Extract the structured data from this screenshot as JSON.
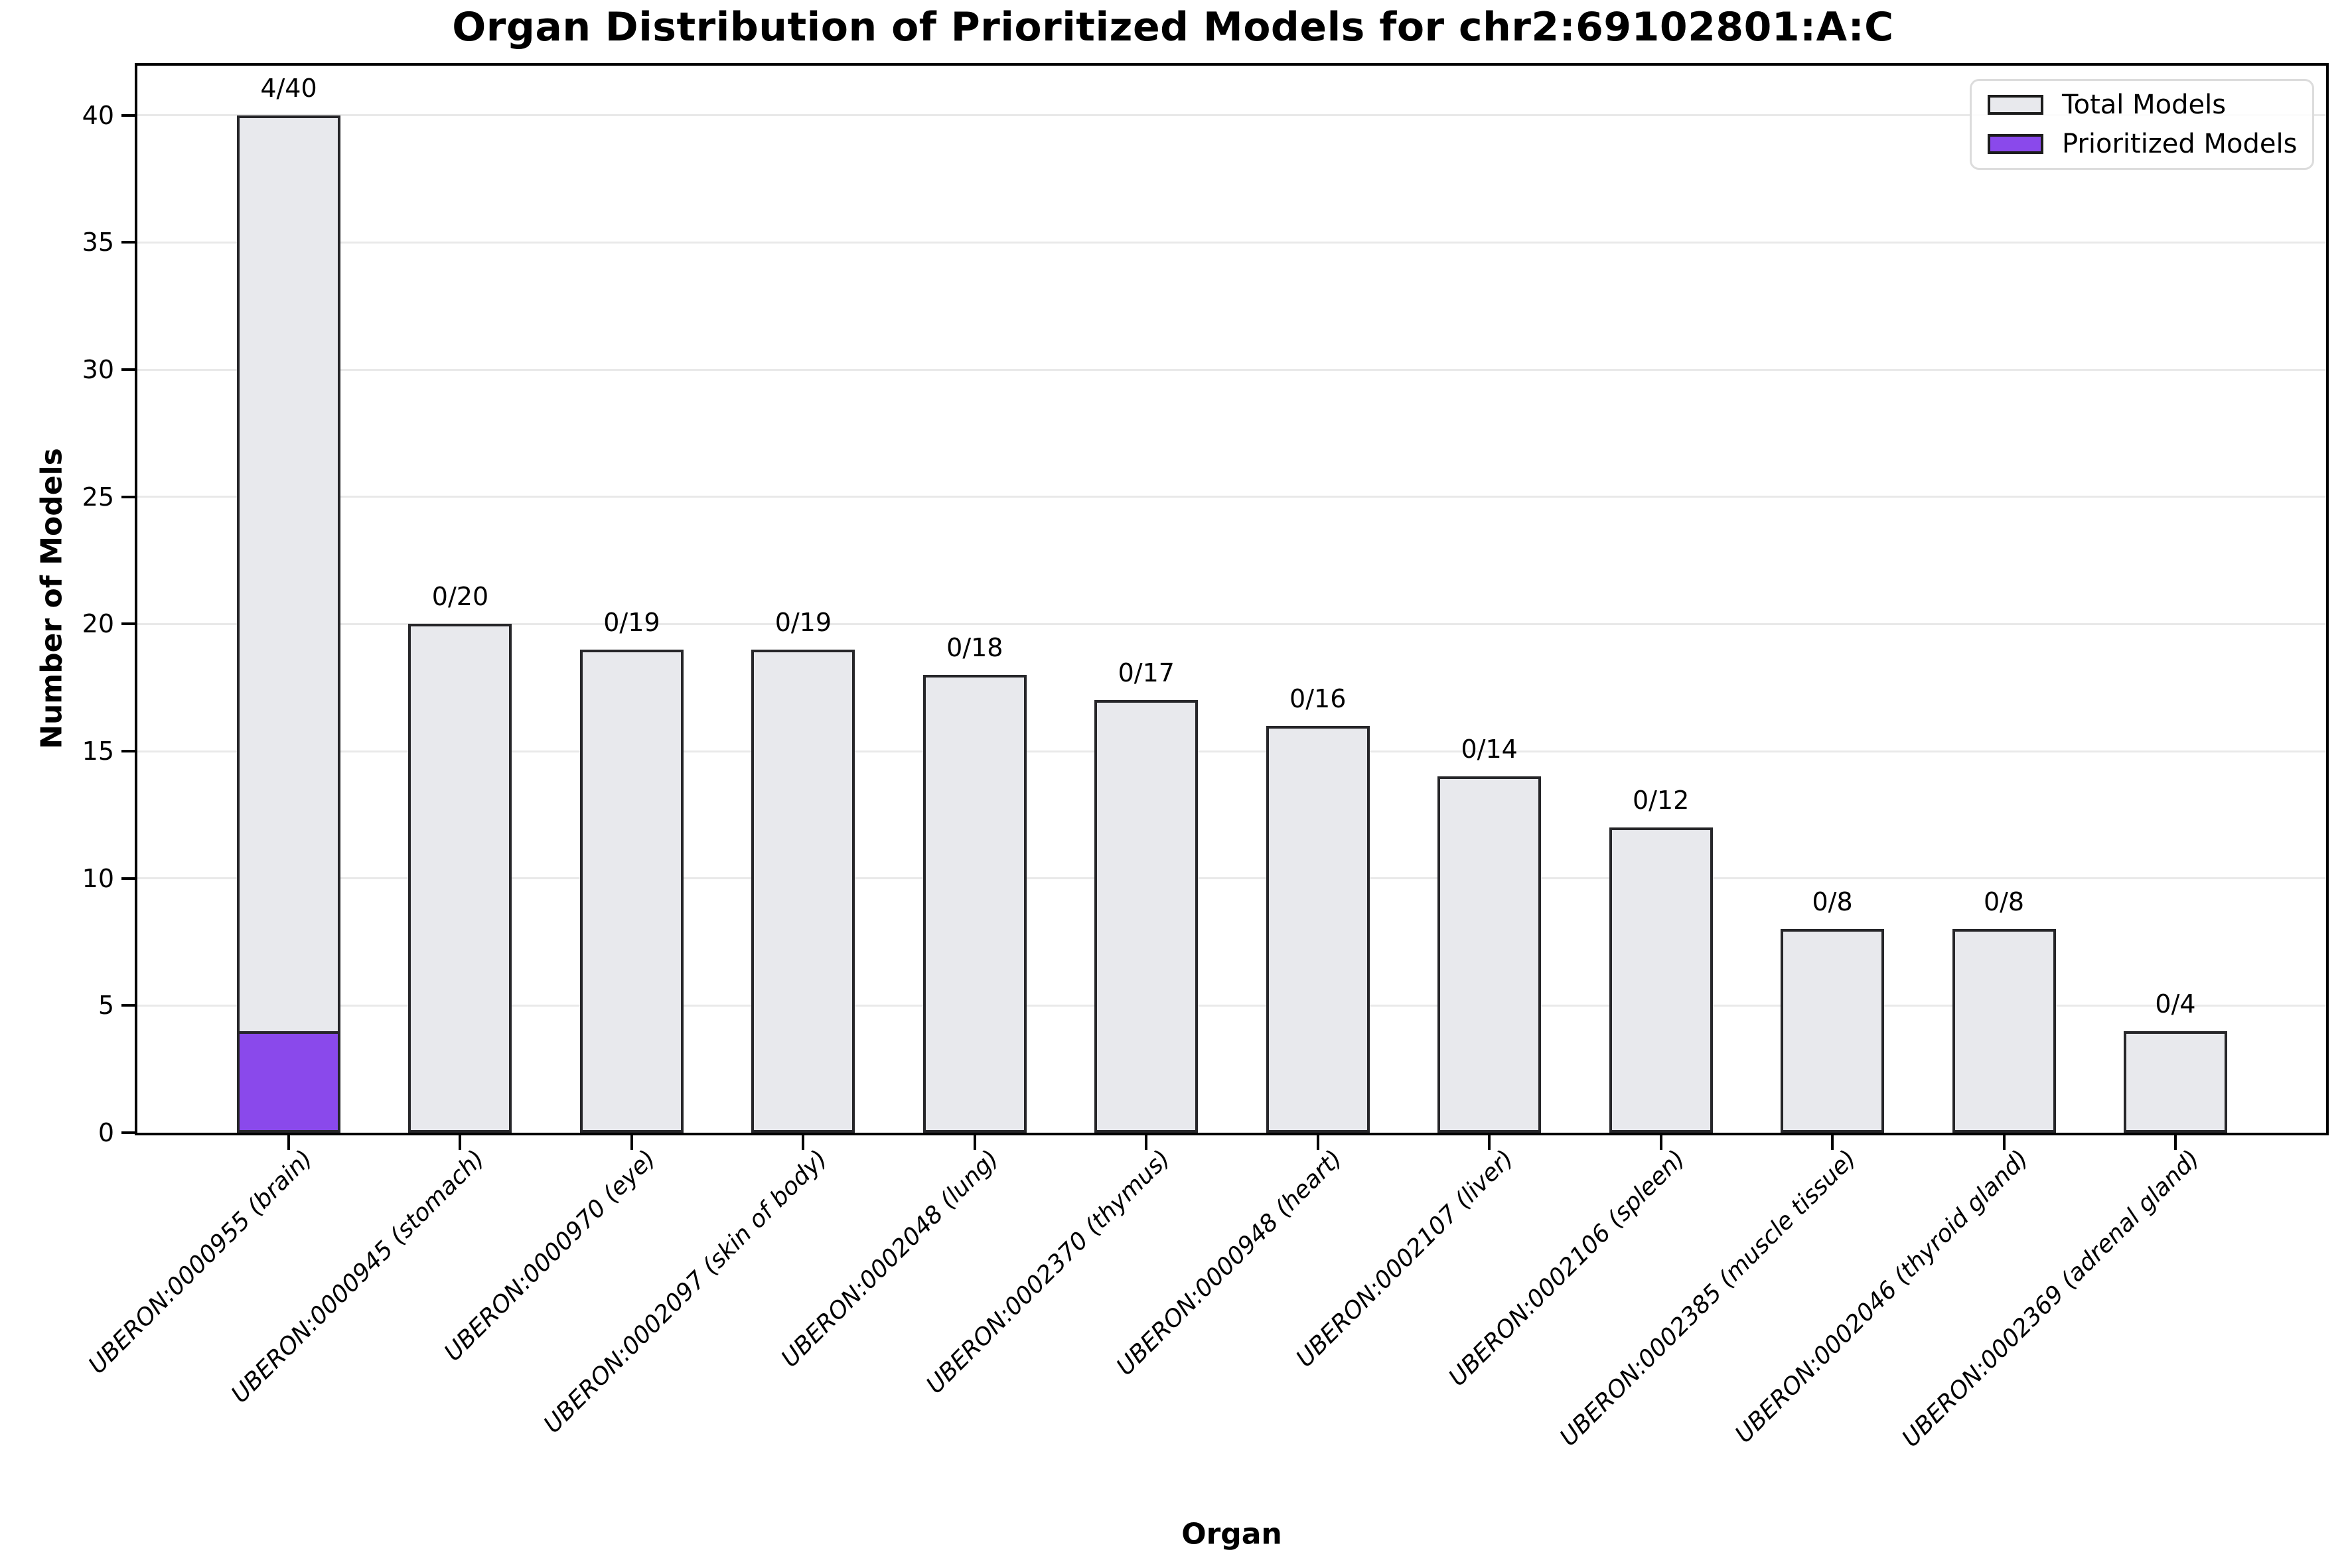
{
  "chart_data": {
    "type": "bar",
    "title": "Organ Distribution of Prioritized Models for chr2:69102801:A:C",
    "xlabel": "Organ",
    "ylabel": "Number of Models",
    "ylim": [
      0,
      42
    ],
    "yticks": [
      0,
      5,
      10,
      15,
      20,
      25,
      30,
      35,
      40
    ],
    "grid": "horizontal-light",
    "legend_position": "upper-right",
    "x_tick_style": "italic, rotated 45deg",
    "categories": [
      "UBERON:0000955 (brain)",
      "UBERON:0000945 (stomach)",
      "UBERON:0000970 (eye)",
      "UBERON:0002097 (skin of body)",
      "UBERON:0002048 (lung)",
      "UBERON:0002370 (thymus)",
      "UBERON:0000948 (heart)",
      "UBERON:0002107 (liver)",
      "UBERON:0002106 (spleen)",
      "UBERON:0002385 (muscle tissue)",
      "UBERON:0002046 (thyroid gland)",
      "UBERON:0002369 (adrenal gland)"
    ],
    "series": [
      {
        "name": "Total Models",
        "color": "#E8E9ED",
        "values": [
          40,
          20,
          19,
          19,
          18,
          17,
          16,
          14,
          12,
          8,
          8,
          4
        ]
      },
      {
        "name": "Prioritized Models",
        "color": "#8A49EB",
        "values": [
          4,
          0,
          0,
          0,
          0,
          0,
          0,
          0,
          0,
          0,
          0,
          0
        ]
      }
    ],
    "bar_labels": [
      "4/40",
      "0/20",
      "0/19",
      "0/19",
      "0/18",
      "0/17",
      "0/16",
      "0/14",
      "0/12",
      "0/8",
      "0/8",
      "0/4"
    ]
  },
  "colors": {
    "background": "#FFFFFF",
    "bar_edge": "#262629",
    "grid": "#E9E9E9",
    "spine": "#000000",
    "text": "#000000",
    "legend_border": "#DCDCDC",
    "legend_background": "rgba(255,255,255,0.85)"
  }
}
